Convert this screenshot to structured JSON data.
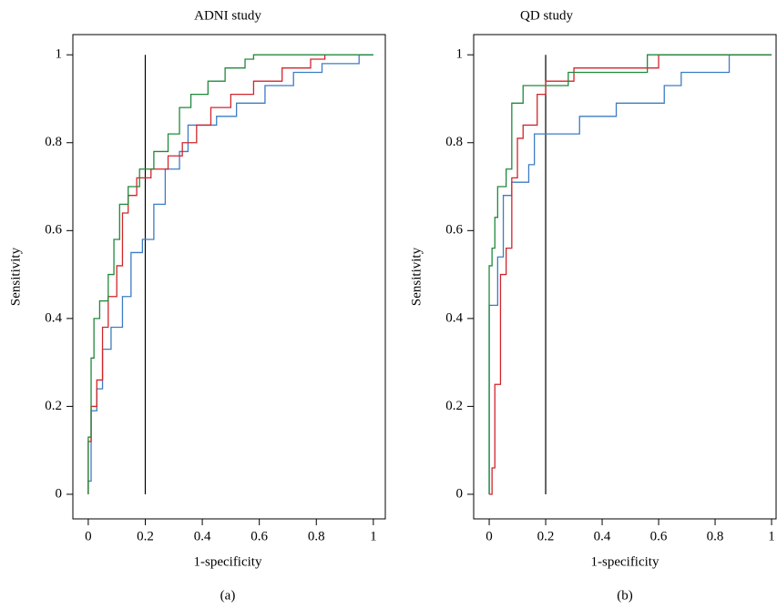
{
  "chart_data": [
    {
      "type": "line",
      "title": "ADNI study",
      "x_label": "1-specificity",
      "y_label": "Sensitivity",
      "caption": "(a)",
      "xlim": [
        -0.054,
        1.042
      ],
      "ylim": [
        -0.056,
        1.046
      ],
      "xticks": [
        0,
        0.2,
        0.4,
        0.6,
        0.8,
        1
      ],
      "yticks": [
        0,
        0.2,
        0.4,
        0.6,
        0.8,
        1
      ],
      "vline": {
        "x": 0.2,
        "y": [
          0,
          1
        ],
        "color": "#000000"
      },
      "series": [
        {
          "color": "#3d7cc4",
          "x": [
            0,
            0,
            0.01,
            0.01,
            0.03,
            0.03,
            0.05,
            0.05,
            0.08,
            0.08,
            0.12,
            0.12,
            0.15,
            0.15,
            0.19,
            0.19,
            0.23,
            0.23,
            0.27,
            0.27,
            0.32,
            0.32,
            0.35,
            0.35,
            0.45,
            0.45,
            0.52,
            0.52,
            0.62,
            0.62,
            0.72,
            0.72,
            0.82,
            0.82,
            0.95,
            0.95,
            1
          ],
          "values": [
            0,
            0.03,
            0.03,
            0.19,
            0.19,
            0.24,
            0.24,
            0.33,
            0.33,
            0.38,
            0.38,
            0.45,
            0.45,
            0.55,
            0.55,
            0.58,
            0.58,
            0.66,
            0.66,
            0.74,
            0.74,
            0.78,
            0.78,
            0.84,
            0.84,
            0.86,
            0.86,
            0.89,
            0.89,
            0.93,
            0.93,
            0.96,
            0.96,
            0.98,
            0.98,
            1,
            1
          ]
        },
        {
          "color": "#d0262b",
          "x": [
            0,
            0,
            0.01,
            0.01,
            0.03,
            0.03,
            0.05,
            0.05,
            0.07,
            0.07,
            0.1,
            0.1,
            0.12,
            0.12,
            0.14,
            0.14,
            0.17,
            0.17,
            0.22,
            0.22,
            0.28,
            0.28,
            0.33,
            0.33,
            0.38,
            0.38,
            0.43,
            0.43,
            0.5,
            0.5,
            0.58,
            0.58,
            0.68,
            0.68,
            0.78,
            0.78,
            0.83,
            0.83
          ],
          "values": [
            0,
            0.12,
            0.12,
            0.2,
            0.2,
            0.26,
            0.26,
            0.38,
            0.38,
            0.45,
            0.45,
            0.52,
            0.52,
            0.64,
            0.64,
            0.68,
            0.68,
            0.72,
            0.72,
            0.74,
            0.74,
            0.77,
            0.77,
            0.8,
            0.8,
            0.84,
            0.84,
            0.88,
            0.88,
            0.91,
            0.91,
            0.94,
            0.94,
            0.97,
            0.97,
            0.99,
            0.99,
            1
          ]
        },
        {
          "color": "#1f8a3b",
          "x": [
            0,
            0,
            0.01,
            0.01,
            0.02,
            0.02,
            0.04,
            0.04,
            0.07,
            0.07,
            0.09,
            0.09,
            0.11,
            0.11,
            0.14,
            0.14,
            0.18,
            0.18,
            0.23,
            0.23,
            0.28,
            0.28,
            0.32,
            0.32,
            0.36,
            0.36,
            0.42,
            0.42,
            0.48,
            0.48,
            0.55,
            0.55,
            0.58,
            0.58,
            1
          ],
          "values": [
            0,
            0.13,
            0.13,
            0.31,
            0.31,
            0.4,
            0.4,
            0.44,
            0.44,
            0.5,
            0.5,
            0.58,
            0.58,
            0.66,
            0.66,
            0.7,
            0.7,
            0.74,
            0.74,
            0.78,
            0.78,
            0.82,
            0.82,
            0.88,
            0.88,
            0.91,
            0.91,
            0.94,
            0.94,
            0.97,
            0.97,
            0.99,
            0.99,
            1,
            1
          ]
        }
      ]
    },
    {
      "type": "line",
      "title": "QD study",
      "x_label": "1-specificity",
      "y_label": "Sensitivity",
      "caption": "(b)",
      "xlim": [
        -0.055,
        1.016
      ],
      "ylim": [
        -0.056,
        1.046
      ],
      "xticks": [
        0,
        0.2,
        0.4,
        0.6,
        0.8,
        1
      ],
      "yticks": [
        0,
        0.2,
        0.4,
        0.6,
        0.8,
        1
      ],
      "vline": {
        "x": 0.2,
        "y": [
          0,
          1
        ],
        "color": "#000000"
      },
      "series": [
        {
          "color": "#3d7cc4",
          "x": [
            0,
            0,
            0.03,
            0.03,
            0.05,
            0.05,
            0.08,
            0.08,
            0.14,
            0.14,
            0.16,
            0.16,
            0.32,
            0.32,
            0.45,
            0.45,
            0.62,
            0.62,
            0.68,
            0.68,
            0.85,
            0.85,
            1
          ],
          "values": [
            0,
            0.43,
            0.43,
            0.54,
            0.54,
            0.68,
            0.68,
            0.71,
            0.71,
            0.75,
            0.75,
            0.82,
            0.82,
            0.86,
            0.86,
            0.89,
            0.89,
            0.93,
            0.93,
            0.96,
            0.96,
            1,
            1
          ]
        },
        {
          "color": "#d0262b",
          "x": [
            0,
            0.01,
            0.01,
            0.02,
            0.02,
            0.04,
            0.04,
            0.06,
            0.06,
            0.08,
            0.08,
            0.1,
            0.1,
            0.12,
            0.12,
            0.17,
            0.17,
            0.2,
            0.2,
            0.3,
            0.3,
            0.6,
            0.6,
            1
          ],
          "values": [
            0,
            0,
            0.06,
            0.06,
            0.25,
            0.25,
            0.5,
            0.5,
            0.56,
            0.56,
            0.72,
            0.72,
            0.81,
            0.81,
            0.84,
            0.84,
            0.91,
            0.91,
            0.94,
            0.94,
            0.97,
            0.97,
            1,
            1
          ]
        },
        {
          "color": "#1f8a3b",
          "x": [
            0,
            0,
            0.01,
            0.01,
            0.02,
            0.02,
            0.03,
            0.03,
            0.06,
            0.06,
            0.08,
            0.08,
            0.12,
            0.12,
            0.28,
            0.28,
            0.56,
            0.56,
            1
          ],
          "values": [
            0,
            0.52,
            0.52,
            0.56,
            0.56,
            0.63,
            0.63,
            0.7,
            0.7,
            0.74,
            0.74,
            0.89,
            0.89,
            0.93,
            0.93,
            0.96,
            0.96,
            1,
            1
          ]
        }
      ]
    }
  ]
}
